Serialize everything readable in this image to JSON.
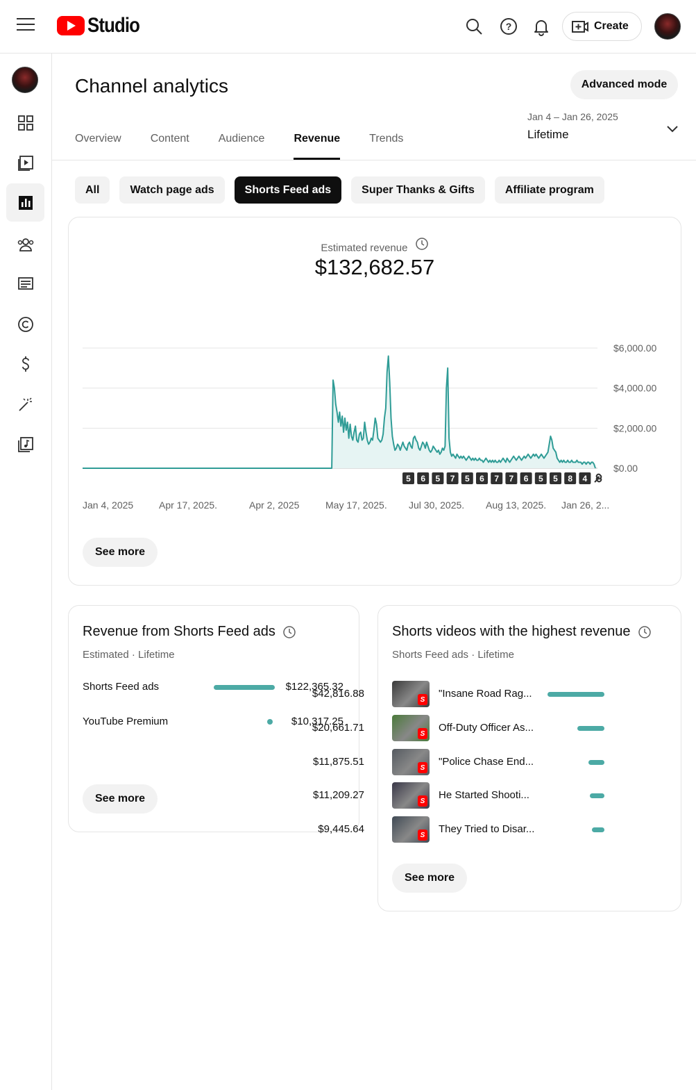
{
  "app": {
    "logo_text": "Studio"
  },
  "header": {
    "title": "Channel analytics",
    "advanced_mode": "Advanced mode",
    "create_label": "Create",
    "tabs": [
      {
        "label": "Overview",
        "active": false
      },
      {
        "label": "Content",
        "active": false
      },
      {
        "label": "Audience",
        "active": false
      },
      {
        "label": "Revenue",
        "active": true
      },
      {
        "label": "Trends",
        "active": false
      }
    ],
    "date_range": "Jan 4 – Jan 26, 2025",
    "date_label": "Lifetime"
  },
  "chips": [
    {
      "label": "All",
      "active": false
    },
    {
      "label": "Watch page ads",
      "active": false
    },
    {
      "label": "Shorts Feed ads",
      "active": true
    },
    {
      "label": "Super Thanks & Gifts",
      "active": false
    },
    {
      "label": "Affiliate program",
      "active": false
    }
  ],
  "main_card": {
    "label": "Estimated revenue",
    "value": "$132,682.57",
    "see_more": "See more"
  },
  "chart_data": {
    "type": "area",
    "ylim": [
      0,
      6000
    ],
    "y_ticks": [
      "$0.00",
      "$2,000.00",
      "$4,000.00",
      "$6,000.00"
    ],
    "y_tick_values": [
      0,
      2000,
      4000,
      6000
    ],
    "x_ticks": [
      "Jan 4, 2025",
      "Apr 17, 2025.",
      "Apr 2, 2025",
      "May 17, 2025.",
      "Jul 30, 2025.",
      "Aug 13, 2025.",
      "Jan 26, 2..."
    ],
    "series_values": [
      0,
      0,
      0,
      0,
      0,
      0,
      0,
      0,
      0,
      0,
      0,
      0,
      0,
      0,
      0,
      0,
      0,
      0,
      0,
      0,
      0,
      0,
      0,
      0,
      0,
      0,
      0,
      0,
      0,
      0,
      0,
      0,
      0,
      0,
      0,
      0,
      0,
      0,
      0,
      0,
      0,
      0,
      0,
      0,
      0,
      0,
      0,
      0,
      0,
      0,
      0,
      0,
      0,
      0,
      0,
      0,
      0,
      0,
      0,
      0,
      0,
      0,
      0,
      0,
      0,
      0,
      0,
      0,
      0,
      0,
      0,
      0,
      0,
      0,
      0,
      0,
      0,
      0,
      0,
      0,
      0,
      0,
      0,
      0,
      0,
      0,
      0,
      0,
      0,
      0,
      0,
      0,
      0,
      0,
      0,
      0,
      0,
      0,
      0,
      0,
      0,
      0,
      0,
      0,
      0,
      0,
      0,
      0,
      0,
      0,
      0,
      0,
      0,
      0,
      0,
      0,
      0,
      0,
      0,
      0,
      0,
      0,
      0,
      0,
      0,
      0,
      0,
      0,
      0,
      0,
      0,
      0,
      0,
      0,
      0,
      0,
      0,
      0,
      0,
      0,
      0,
      0,
      0,
      0,
      0,
      0,
      0,
      0,
      0,
      0,
      0,
      0,
      0,
      0,
      0,
      0,
      0,
      0,
      0,
      0,
      0,
      0,
      0,
      0,
      0,
      0,
      0,
      0,
      0,
      0,
      0,
      0,
      0,
      0,
      0,
      0,
      0,
      0,
      0,
      0,
      0,
      0,
      0,
      0,
      0,
      0,
      0,
      0,
      0,
      0,
      4400,
      4000,
      3200,
      2800,
      2300,
      2800,
      2100,
      2600,
      1800,
      2500,
      1900,
      2300,
      1500,
      2200,
      1600,
      1400,
      1800,
      2100,
      1400,
      1300,
      1700,
      1800,
      1400,
      1500,
      2300,
      1800,
      1400,
      1200,
      1300,
      1500,
      1400,
      1900,
      2500,
      2200,
      1500,
      1400,
      1300,
      1400,
      1700,
      2500,
      3000,
      4800,
      5600,
      4300,
      2500,
      1600,
      1200,
      900,
      1000,
      1200,
      1100,
      900,
      1100,
      1300,
      1100,
      1000,
      900,
      1200,
      1300,
      1100,
      1000,
      1500,
      1600,
      1400,
      1300,
      1000,
      900,
      1100,
      1300,
      1200,
      1000,
      1300,
      1100,
      900,
      800,
      900,
      1100,
      1000,
      900,
      800,
      900,
      700,
      800,
      1000,
      900,
      1100,
      4000,
      5000,
      1500,
      800,
      600,
      700,
      600,
      500,
      700,
      600,
      500,
      600,
      500,
      600,
      500,
      400,
      500,
      600,
      500,
      400,
      500,
      400,
      500,
      400,
      400,
      500,
      400,
      400,
      300,
      400,
      500,
      400,
      300,
      400,
      300,
      400,
      300,
      400,
      300,
      300,
      400,
      300,
      400,
      500,
      400,
      300,
      500,
      400,
      300,
      400,
      500,
      600,
      500,
      400,
      500,
      600,
      500,
      400,
      500,
      600,
      500,
      600,
      700,
      600,
      500,
      600,
      700,
      600,
      700,
      600,
      500,
      600,
      700,
      600,
      500,
      600,
      700,
      800,
      1200,
      1600,
      1400,
      1000,
      900,
      800,
      500,
      400,
      300,
      400,
      300,
      400,
      300,
      300,
      400,
      300,
      300,
      400,
      300,
      300,
      300,
      400,
      300,
      300,
      300,
      200,
      300,
      300,
      200,
      300,
      300,
      200,
      300,
      300,
      200,
      0
    ],
    "chip_digits": [
      "5",
      "6",
      "5",
      "7",
      "5",
      "6",
      "7",
      "7",
      "6",
      "5",
      "5",
      "8",
      "4"
    ]
  },
  "left_card": {
    "title": "Revenue from Shorts Feed ads",
    "subtitle": "Estimated · Lifetime",
    "rows": [
      {
        "label": "Shorts Feed ads",
        "value": "$122,365.32",
        "share": 0.922
      },
      {
        "label": "YouTube Premium",
        "value": "$10,317.25",
        "share": 0.078
      }
    ],
    "see_more": "See more"
  },
  "right_card": {
    "title": "Shorts videos with the highest revenue",
    "subtitle": "Shorts Feed ads · Lifetime",
    "rows": [
      {
        "label": "\"Insane Road Rag...",
        "value": "$42,816.88",
        "share": 1.0,
        "thumb_color": "#3a3a3a"
      },
      {
        "label": "Off-Duty Officer As...",
        "value": "$20,661.71",
        "share": 0.48,
        "thumb_color": "#4a7a3a"
      },
      {
        "label": "\"Police Chase End...",
        "value": "$11,875.51",
        "share": 0.28,
        "thumb_color": "#555a60"
      },
      {
        "label": "He Started Shooti...",
        "value": "$11,209.27",
        "share": 0.26,
        "thumb_color": "#3a3848"
      },
      {
        "label": "They Tried to Disar...",
        "value": "$9,445.64",
        "share": 0.22,
        "thumb_color": "#404a55"
      }
    ],
    "see_more": "See more"
  },
  "colors": {
    "accent": "#4caaa5",
    "line": "#2f9c96",
    "fill": "#e6f4f3",
    "brand": "#ff0000"
  }
}
